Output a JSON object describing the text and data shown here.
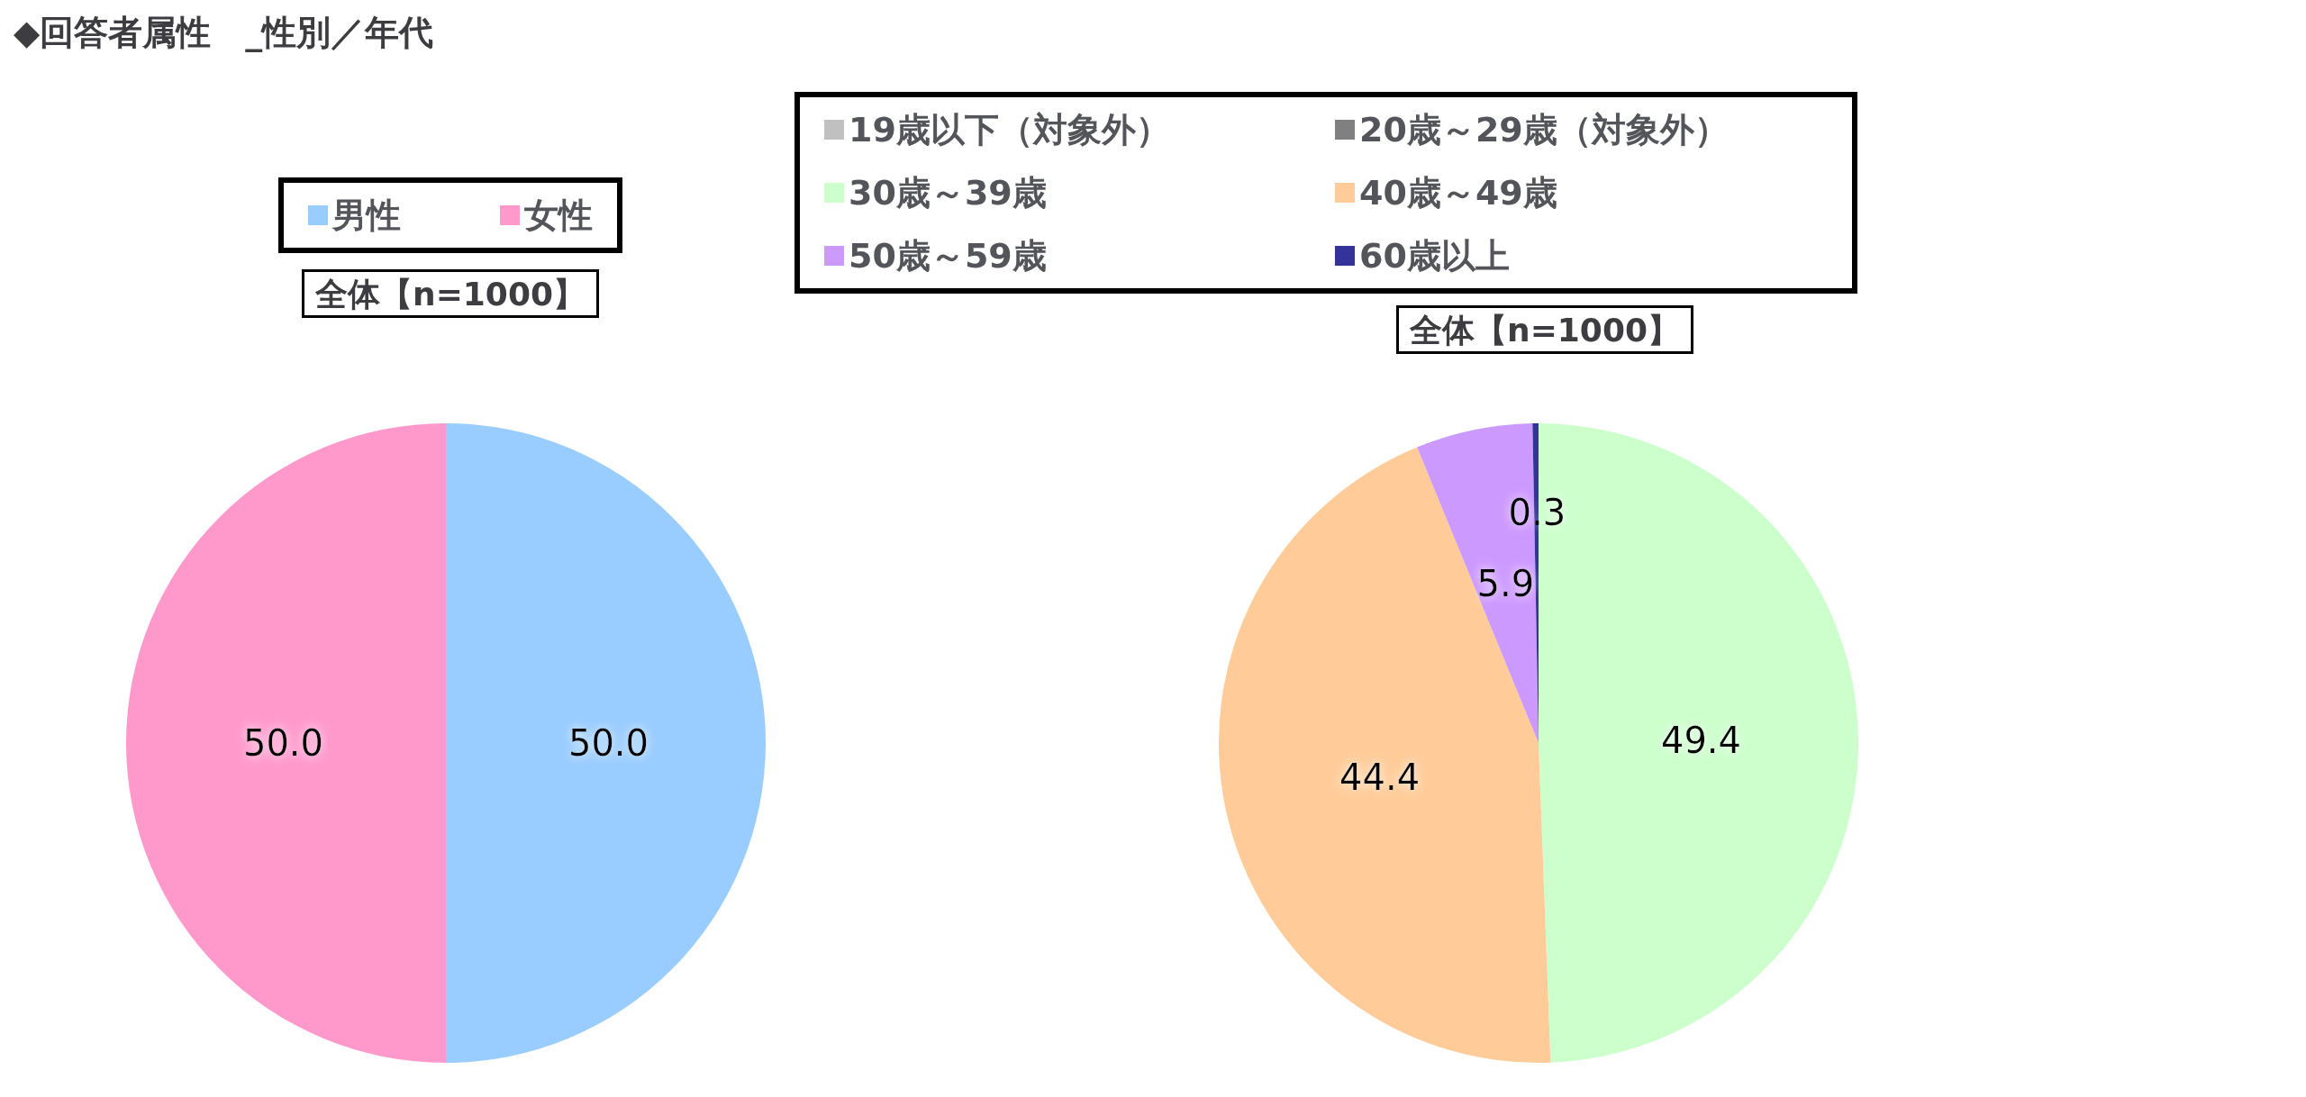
{
  "chart_data": [
    {
      "type": "pie",
      "title": "◆回答者属性　_性別／年代",
      "subtitle": "全体【n=1000】",
      "categories": [
        "男性",
        "女性"
      ],
      "values": [
        50.0,
        50.0
      ],
      "colors": [
        "#99ccff",
        "#ff99cc"
      ],
      "value_labels": [
        "50.0",
        "50.0"
      ],
      "legend": "top"
    },
    {
      "type": "pie",
      "title": "全体【n=1000】",
      "categories": [
        "19歳以下（対象外）",
        "20歳～29歳（対象外）",
        "30歳～39歳",
        "40歳～49歳",
        "50歳～59歳",
        "60歳以上"
      ],
      "values": [
        0,
        0,
        49.4,
        44.4,
        5.9,
        0.3
      ],
      "colors": [
        "#c0c0c0",
        "#808080",
        "#ccffcc",
        "#ffcc99",
        "#cc99ff",
        "#333399"
      ],
      "value_labels": [
        null,
        null,
        "49.4",
        "44.4",
        "5.9",
        "0.3"
      ],
      "legend": "top"
    }
  ]
}
